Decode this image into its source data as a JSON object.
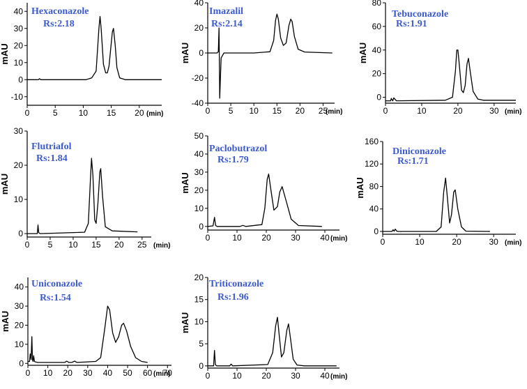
{
  "figure": {
    "y_axis_title": "mAU",
    "x_unit_label": "(min)"
  },
  "chart_data": [
    {
      "type": "line",
      "title": "Hexaconazole",
      "subtitle": "Rs:2.18",
      "xlabel": "(min)",
      "ylabel": "mAU",
      "xlim": [
        0,
        24
      ],
      "ylim": [
        -15,
        45
      ],
      "xticks": [
        0,
        5,
        10,
        15,
        20
      ],
      "yticks": [
        -10,
        0,
        10,
        20,
        30,
        40
      ],
      "series": [
        {
          "x": [
            0,
            2.0,
            2.2,
            2.4,
            10.5,
            11.5,
            12.3,
            12.8,
            13.0,
            13.2,
            13.6,
            14.0,
            14.3,
            14.6,
            14.9,
            15.2,
            15.4,
            15.7,
            16.0,
            16.5,
            17.5,
            24
          ],
          "y": [
            0,
            0,
            0.6,
            0,
            0,
            1,
            5,
            30,
            37,
            30,
            9,
            4,
            4,
            8,
            18,
            28,
            30,
            20,
            7,
            1,
            0,
            0
          ]
        }
      ]
    },
    {
      "type": "line",
      "title": "Imazalil",
      "subtitle": "Rs:2.14",
      "xlabel": "(min)",
      "ylabel": "mAU",
      "xlim": [
        0,
        27.5
      ],
      "ylim": [
        -40,
        40
      ],
      "xticks": [
        0,
        5,
        10,
        15,
        20,
        25
      ],
      "yticks": [
        -40,
        -20,
        0,
        20,
        40
      ],
      "series": [
        {
          "x": [
            0,
            2.0,
            2.3,
            2.45,
            2.6,
            2.9,
            3.5,
            10,
            13.5,
            14.3,
            14.7,
            15.0,
            15.3,
            15.8,
            16.4,
            17.0,
            17.6,
            18.0,
            18.3,
            18.8,
            19.6,
            21,
            27
          ],
          "y": [
            0,
            0,
            1,
            20,
            -36,
            -4,
            0,
            0,
            1,
            10,
            26,
            31,
            27,
            12,
            6,
            8,
            22,
            27,
            25,
            13,
            3,
            0.8,
            0
          ]
        }
      ]
    },
    {
      "type": "line",
      "title": "Tebuconazole",
      "subtitle": "Rs:1.91",
      "xlabel": "(min)",
      "ylabel": "mAU",
      "xlim": [
        0,
        36
      ],
      "ylim": [
        -5,
        80
      ],
      "xticks": [
        0,
        10,
        20,
        30
      ],
      "yticks": [
        0,
        20,
        40,
        60,
        80
      ],
      "series": [
        {
          "x": [
            0,
            1.4,
            1.6,
            2.0,
            2.3,
            3.0,
            16.5,
            18.5,
            19.3,
            19.7,
            20.0,
            20.4,
            21.0,
            21.5,
            22.0,
            22.5,
            22.9,
            23.4,
            24.2,
            25.5,
            27,
            36
          ],
          "y": [
            -3,
            -3,
            -1,
            -3,
            -0.5,
            -3,
            -2.5,
            0,
            22,
            40,
            40,
            27,
            6,
            4,
            10,
            28,
            33,
            22,
            5,
            -1.5,
            -2.5,
            -2.5
          ]
        }
      ]
    },
    {
      "type": "line",
      "title": "Flutriafol",
      "subtitle": "Rs:1.84",
      "xlabel": "(min)",
      "ylabel": "mAU",
      "xlim": [
        0,
        27
      ],
      "ylim": [
        -1,
        30
      ],
      "xticks": [
        0,
        5,
        10,
        15,
        20,
        25
      ],
      "yticks": [
        0,
        10,
        20,
        30
      ],
      "series": [
        {
          "x": [
            0,
            2.2,
            2.35,
            2.5,
            2.8,
            12.5,
            13.3,
            13.8,
            14.0,
            14.3,
            14.7,
            15.0,
            15.4,
            15.8,
            16.0,
            16.4,
            17.0,
            18.5,
            24
          ],
          "y": [
            0,
            0,
            2.5,
            0.3,
            0,
            0.4,
            3,
            17,
            22,
            17,
            4,
            3,
            9,
            18,
            19,
            11,
            2,
            0.8,
            0.5
          ]
        }
      ]
    },
    {
      "type": "line",
      "title": "Paclobutrazol",
      "subtitle": "Rs:1.79",
      "xlabel": "(min)",
      "ylabel": "mAU",
      "xlim": [
        0,
        45
      ],
      "ylim": [
        -2,
        50
      ],
      "xticks": [
        0,
        10,
        20,
        30,
        40
      ],
      "yticks": [
        0,
        10,
        20,
        30,
        40,
        50
      ],
      "series": [
        {
          "x": [
            0,
            1.8,
            2.3,
            2.7,
            3.2,
            11,
            12,
            13,
            18.5,
            19.5,
            20.3,
            20.8,
            21.6,
            22.6,
            23.8,
            24.6,
            25.4,
            26.8,
            28.5,
            31,
            39
          ],
          "y": [
            0,
            0.3,
            5,
            0.5,
            0,
            0,
            0.6,
            0,
            1,
            10,
            26,
            29,
            20,
            9,
            11,
            19,
            22,
            14,
            4,
            0.5,
            0
          ]
        }
      ]
    },
    {
      "type": "line",
      "title": "Diniconazole",
      "subtitle": "Rs:1.71",
      "xlabel": "(min)",
      "ylabel": "mAU",
      "xlim": [
        0,
        36
      ],
      "ylim": [
        -5,
        160
      ],
      "xticks": [
        0,
        10,
        20,
        30
      ],
      "yticks": [
        0,
        40,
        80,
        120,
        160
      ],
      "series": [
        {
          "x": [
            0,
            2.5,
            2.8,
            3.1,
            3.4,
            3.8,
            4.2,
            14.5,
            15.8,
            16.5,
            17.0,
            17.5,
            18.1,
            18.6,
            19.2,
            19.6,
            20.3,
            21.3,
            22.5,
            29
          ],
          "y": [
            0,
            0,
            3,
            0.5,
            4,
            0.5,
            0,
            0,
            8,
            70,
            95,
            60,
            15,
            30,
            70,
            74,
            40,
            8,
            0.5,
            0
          ]
        }
      ]
    },
    {
      "type": "line",
      "title": "Uniconazole",
      "subtitle": "Rs:1.54",
      "xlabel": "(min)",
      "ylabel": "mAU",
      "xlim": [
        0,
        72
      ],
      "ylim": [
        -1,
        45
      ],
      "xticks": [
        0,
        10,
        20,
        30,
        40,
        50,
        60,
        70
      ],
      "yticks": [
        0,
        10,
        20,
        30,
        40
      ],
      "series": [
        {
          "x": [
            0,
            0.8,
            1.2,
            1.6,
            2.0,
            2.3,
            2.6,
            2.9,
            3.3,
            3.7,
            5,
            18.5,
            19.5,
            20.5,
            22,
            23.5,
            24.5,
            34,
            36.5,
            38.5,
            40,
            41,
            42.5,
            44,
            45.5,
            47,
            48,
            49.5,
            51.5,
            54,
            57,
            60
          ],
          "y": [
            1,
            1,
            5,
            2,
            14,
            2,
            1,
            4,
            1,
            0.8,
            0.5,
            0.5,
            1.2,
            0.5,
            0.5,
            1.2,
            0.5,
            1,
            3,
            18,
            30,
            28,
            16,
            11,
            14,
            20,
            21,
            17,
            9,
            3,
            1,
            0.5
          ]
        }
      ]
    },
    {
      "type": "line",
      "title": "Triticonazole",
      "subtitle": "Rs:1.96",
      "xlabel": "(min)",
      "ylabel": "mAU",
      "xlim": [
        0,
        45
      ],
      "ylim": [
        -0.5,
        20
      ],
      "xticks": [
        0,
        10,
        20,
        30,
        40
      ],
      "yticks": [
        0,
        5,
        10,
        15,
        20
      ],
      "series": [
        {
          "x": [
            0,
            2.0,
            2.3,
            2.6,
            3.0,
            7.5,
            8.0,
            8.5,
            20.5,
            22.2,
            23.2,
            23.8,
            24.4,
            25.2,
            26.0,
            27.0,
            27.6,
            28.3,
            29.2,
            30.5,
            33,
            44
          ],
          "y": [
            0,
            0,
            3.5,
            0.3,
            0,
            0,
            0.4,
            0,
            0.3,
            3,
            9,
            11,
            7,
            2,
            3,
            8,
            9.5,
            6,
            1.5,
            0.2,
            0,
            0
          ]
        }
      ]
    }
  ]
}
